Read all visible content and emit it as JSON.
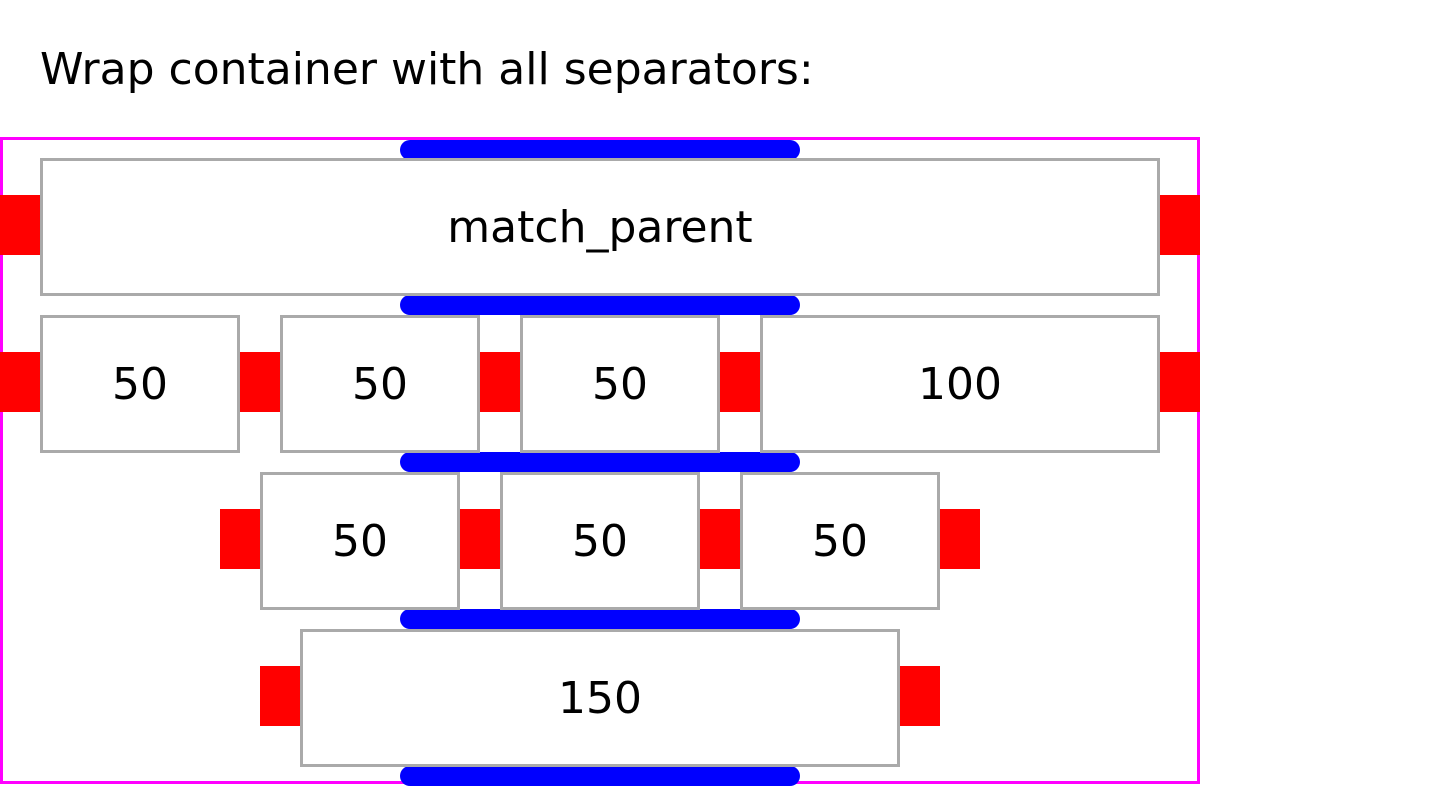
{
  "heading": "Wrap container with all separators:",
  "colors": {
    "container_border": "#ff00ff",
    "item_border": "#aaaaaa",
    "item_separator": "#ff0000",
    "line_separator": "#0000ff"
  },
  "rows": [
    {
      "items": [
        "match_parent"
      ]
    },
    {
      "items": [
        "50",
        "50",
        "50",
        "100"
      ]
    },
    {
      "items": [
        "50",
        "50",
        "50"
      ]
    },
    {
      "items": [
        "150"
      ]
    }
  ]
}
